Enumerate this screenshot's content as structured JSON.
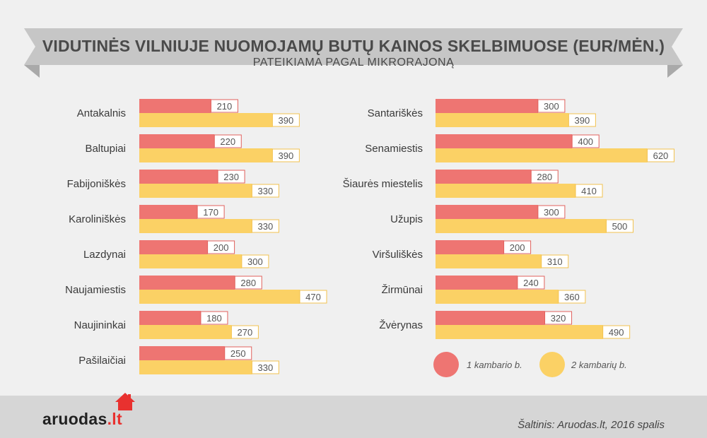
{
  "header": {
    "title": "VIDUTINĖS VILNIUJE NUOMOJAMŲ BUTŲ KAINOS SKELBIMUOSE (EUR/MĖN.)",
    "subtitle": "PATEIKIAMA PAGAL MIKRORAJONĄ"
  },
  "colors": {
    "one_room": "#ee7572",
    "two_room": "#fbd165",
    "ribbon": "#c6c6c6",
    "ribbon_fold": "#a9a9a9"
  },
  "chart_data": {
    "type": "bar",
    "orientation": "horizontal",
    "title": "VIDUTINĖS VILNIUJE NUOMOJAMŲ BUTŲ KAINOS SKELBIMUOSE (EUR/MĖN.)",
    "subtitle": "PATEIKIAMA PAGAL MIKRORAJONĄ",
    "unit": "EUR/MĖN.",
    "grid": false,
    "legend_position": "bottom-right",
    "panels": [
      {
        "categories": [
          "Antakalnis",
          "Baltupiai",
          "Fabijoniškės",
          "Karoliniškės",
          "Lazdynai",
          "Naujamiestis",
          "Naujininkai",
          "Pašilaičiai"
        ],
        "series": [
          {
            "name": "1 kambario b.",
            "values": [
              210,
              220,
              230,
              170,
              200,
              280,
              180,
              250
            ]
          },
          {
            "name": "2 kambarių b.",
            "values": [
              390,
              390,
              330,
              330,
              300,
              470,
              270,
              330
            ]
          }
        ]
      },
      {
        "categories": [
          "Santariškės",
          "Senamiestis",
          "Šiaurės miestelis",
          "Užupis",
          "Viršuliškės",
          "Žirmūnai",
          "Žvėrynas"
        ],
        "series": [
          {
            "name": "1 kambario b.",
            "values": [
              300,
              400,
              280,
              300,
              200,
              240,
              320
            ]
          },
          {
            "name": "2 kambarių b.",
            "values": [
              390,
              620,
              410,
              500,
              310,
              360,
              490
            ]
          }
        ]
      }
    ]
  },
  "legend": {
    "one_room": "1 kambario b.",
    "two_room": "2 kambarių b."
  },
  "footer": {
    "logo_main": "aruodas",
    "logo_suffix": ".lt",
    "source": "Šaltinis: Aruodas.lt, 2016 spalis"
  }
}
